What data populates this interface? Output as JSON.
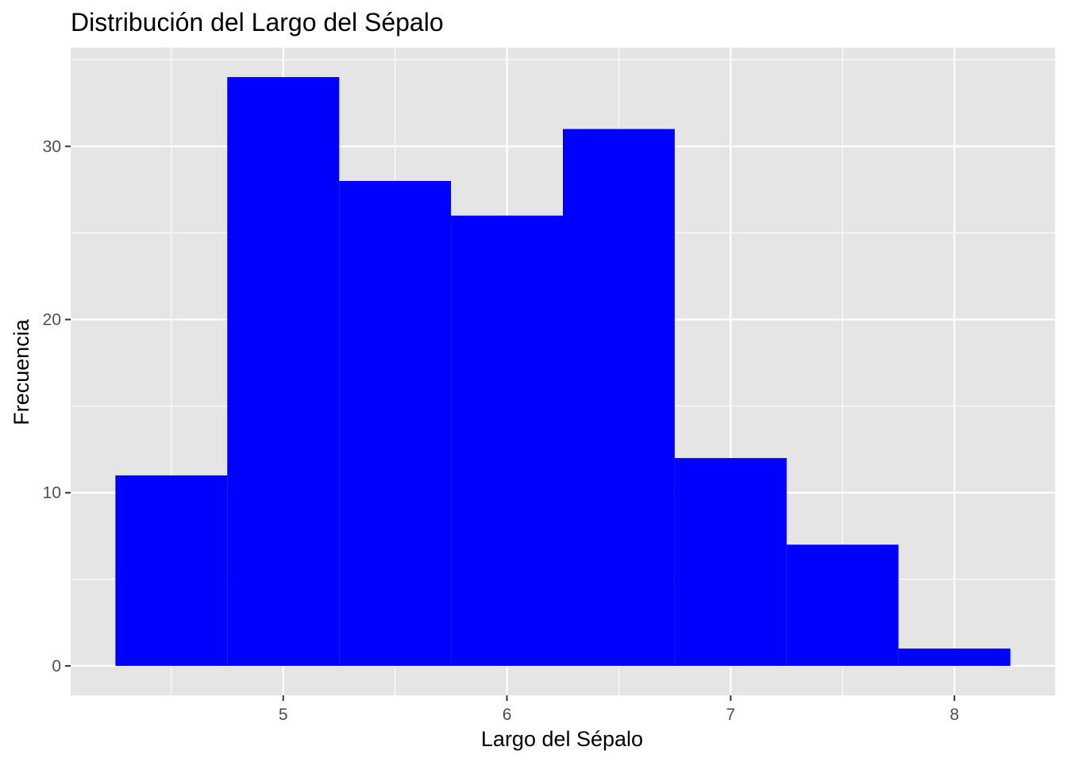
{
  "chart_data": {
    "type": "bar",
    "title": "Distribución del Largo del Sépalo",
    "xlabel": "Largo del Sépalo",
    "ylabel": "Frecuencia",
    "bins": [
      {
        "x0": 4.25,
        "x1": 4.75,
        "count": 11
      },
      {
        "x0": 4.75,
        "x1": 5.25,
        "count": 34
      },
      {
        "x0": 5.25,
        "x1": 5.75,
        "count": 28
      },
      {
        "x0": 5.75,
        "x1": 6.25,
        "count": 26
      },
      {
        "x0": 6.25,
        "x1": 6.75,
        "count": 31
      },
      {
        "x0": 6.75,
        "x1": 7.25,
        "count": 12
      },
      {
        "x0": 7.25,
        "x1": 7.75,
        "count": 7
      },
      {
        "x0": 7.75,
        "x1": 8.25,
        "count": 1
      }
    ],
    "xlim": [
      4.05,
      8.45
    ],
    "ylim": [
      -1.7,
      35.7
    ],
    "x_major_ticks": [
      5,
      6,
      7,
      8
    ],
    "x_minor_ticks": [
      4.5,
      5.5,
      6.5,
      7.5
    ],
    "y_major_ticks": [
      0,
      10,
      20,
      30
    ],
    "y_minor_ticks": [
      5,
      15,
      25,
      35
    ],
    "grid": true,
    "legend": "none",
    "colors": {
      "bar_fill": "#0000ff",
      "panel_background": "#e5e5e5",
      "grid_line": "#ffffff",
      "tick_label": "#4d4d4d",
      "tick_mark": "#333333"
    }
  }
}
